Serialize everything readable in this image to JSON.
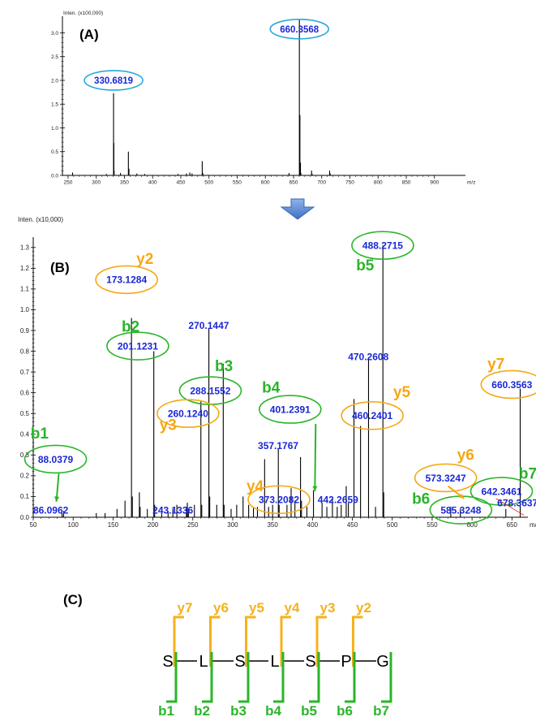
{
  "chart_data": [
    {
      "type": "bar",
      "panel": "(A)",
      "intensity_label": "Inten. (x100,000)",
      "xlabel": "m/z",
      "xlim": [
        240,
        955
      ],
      "ylim": [
        0,
        3.35
      ],
      "x_ticks": [
        250,
        300,
        350,
        400,
        450,
        500,
        550,
        600,
        650,
        700,
        750,
        800,
        850,
        900
      ],
      "y_ticks": [
        "0.0",
        "0.5",
        "1.0",
        "1.5",
        "2.0",
        "2.5",
        "3.0"
      ],
      "peaks": [
        {
          "x": 258,
          "y": 0.06
        },
        {
          "x": 318,
          "y": 0.03
        },
        {
          "x": 330.68,
          "y": 1.73
        },
        {
          "x": 331.2,
          "y": 0.68
        },
        {
          "x": 331.7,
          "y": 0.1
        },
        {
          "x": 343,
          "y": 0.05
        },
        {
          "x": 357,
          "y": 0.5
        },
        {
          "x": 358,
          "y": 0.14
        },
        {
          "x": 372,
          "y": 0.04
        },
        {
          "x": 386,
          "y": 0.03
        },
        {
          "x": 445,
          "y": 0.03
        },
        {
          "x": 460,
          "y": 0.04
        },
        {
          "x": 466,
          "y": 0.06
        },
        {
          "x": 470,
          "y": 0.04
        },
        {
          "x": 488,
          "y": 0.3
        },
        {
          "x": 489,
          "y": 0.05
        },
        {
          "x": 642,
          "y": 0.05
        },
        {
          "x": 660.36,
          "y": 3.27
        },
        {
          "x": 661.3,
          "y": 1.27
        },
        {
          "x": 662.3,
          "y": 0.27
        },
        {
          "x": 663,
          "y": 0.05
        },
        {
          "x": 682,
          "y": 0.1
        },
        {
          "x": 683,
          "y": 0.03
        },
        {
          "x": 714,
          "y": 0.1
        },
        {
          "x": 715,
          "y": 0.04
        }
      ],
      "labels": [
        {
          "text": "330.6819",
          "x": 330.68,
          "y": 2.0,
          "ring": "#29a8e0"
        },
        {
          "text": "660.3568",
          "x": 660.36,
          "y": 3.08,
          "ring": "#29a8e0"
        }
      ]
    },
    {
      "type": "bar",
      "panel": "(B)",
      "intensity_label": "Inten. (x10,000)",
      "xlabel": "m/z",
      "xlim": [
        50,
        670
      ],
      "ylim": [
        0,
        1.35
      ],
      "x_ticks": [
        50,
        100,
        150,
        200,
        250,
        300,
        350,
        400,
        450,
        500,
        550,
        600,
        650
      ],
      "y_ticks": [
        "0.0",
        "0.1",
        "0.2",
        "0.3",
        "0.4",
        "0.5",
        "0.6",
        "0.7",
        "0.8",
        "0.9",
        "1.0",
        "1.1",
        "1.2",
        "1.3"
      ],
      "peaks": [
        {
          "x": 86.0962,
          "y": 0.02
        },
        {
          "x": 88.0379,
          "y": 0.03
        },
        {
          "x": 129,
          "y": 0.02
        },
        {
          "x": 140,
          "y": 0.02
        },
        {
          "x": 155,
          "y": 0.04
        },
        {
          "x": 165,
          "y": 0.08
        },
        {
          "x": 173.1284,
          "y": 0.96
        },
        {
          "x": 174.2,
          "y": 0.1
        },
        {
          "x": 183,
          "y": 0.12
        },
        {
          "x": 184,
          "y": 0.05
        },
        {
          "x": 193,
          "y": 0.04
        },
        {
          "x": 201.1231,
          "y": 0.8
        },
        {
          "x": 202.2,
          "y": 0.06
        },
        {
          "x": 211,
          "y": 0.05
        },
        {
          "x": 219,
          "y": 0.03
        },
        {
          "x": 225,
          "y": 0.04
        },
        {
          "x": 230,
          "y": 0.06
        },
        {
          "x": 242,
          "y": 0.05
        },
        {
          "x": 243.1336,
          "y": 0.07
        },
        {
          "x": 244.5,
          "y": 0.04
        },
        {
          "x": 252,
          "y": 0.06
        },
        {
          "x": 260.124,
          "y": 0.56
        },
        {
          "x": 261.2,
          "y": 0.06
        },
        {
          "x": 270.1447,
          "y": 0.91
        },
        {
          "x": 271.2,
          "y": 0.1
        },
        {
          "x": 280,
          "y": 0.06
        },
        {
          "x": 288.1552,
          "y": 0.74
        },
        {
          "x": 289.2,
          "y": 0.06
        },
        {
          "x": 298,
          "y": 0.04
        },
        {
          "x": 305,
          "y": 0.06
        },
        {
          "x": 313,
          "y": 0.1
        },
        {
          "x": 320,
          "y": 0.06
        },
        {
          "x": 326,
          "y": 0.05
        },
        {
          "x": 331,
          "y": 0.05
        },
        {
          "x": 340,
          "y": 0.28
        },
        {
          "x": 345,
          "y": 0.05
        },
        {
          "x": 350,
          "y": 0.06
        },
        {
          "x": 357.1767,
          "y": 0.33
        },
        {
          "x": 358.2,
          "y": 0.06
        },
        {
          "x": 368,
          "y": 0.06
        },
        {
          "x": 373.2082,
          "y": 0.14
        },
        {
          "x": 378,
          "y": 0.08
        },
        {
          "x": 385,
          "y": 0.29
        },
        {
          "x": 386.2,
          "y": 0.08
        },
        {
          "x": 393,
          "y": 0.05
        },
        {
          "x": 401.2391,
          "y": 0.13
        },
        {
          "x": 412,
          "y": 0.07
        },
        {
          "x": 418,
          "y": 0.05
        },
        {
          "x": 425,
          "y": 0.09
        },
        {
          "x": 431,
          "y": 0.05
        },
        {
          "x": 436,
          "y": 0.06
        },
        {
          "x": 442.2659,
          "y": 0.15
        },
        {
          "x": 445,
          "y": 0.07
        },
        {
          "x": 452,
          "y": 0.57
        },
        {
          "x": 460.2401,
          "y": 0.44
        },
        {
          "x": 470.2608,
          "y": 0.77
        },
        {
          "x": 479,
          "y": 0.05
        },
        {
          "x": 488.2715,
          "y": 1.31
        },
        {
          "x": 489.3,
          "y": 0.12
        },
        {
          "x": 573.3247,
          "y": 0.05
        },
        {
          "x": 585.3248,
          "y": 0.04
        },
        {
          "x": 642.3461,
          "y": 0.04
        },
        {
          "x": 660.3563,
          "y": 0.62
        }
      ],
      "labels": [
        {
          "text": "86.0962",
          "x": 72,
          "y": 0.035,
          "ring": ""
        },
        {
          "text": "88.0379",
          "x": 78,
          "y": 0.28,
          "ring": "#2ab52a",
          "ion": "b1",
          "ion_color": "#2ab52a",
          "ion_x": 58,
          "ion_y": 0.38
        },
        {
          "text": "173.1284",
          "x": 167,
          "y": 1.145,
          "ring": "#f5a814",
          "ion": "y2",
          "ion_color": "#f5a814",
          "ion_x": 190,
          "ion_y": 1.22
        },
        {
          "text": "201.1231",
          "x": 181,
          "y": 0.825,
          "ring": "#2ab52a",
          "ion": "b2",
          "ion_color": "#2ab52a",
          "ion_x": 172,
          "ion_y": 0.895
        },
        {
          "text": "270.1447",
          "x": 270,
          "y": 0.925,
          "ring": ""
        },
        {
          "text": "288.1552",
          "x": 272,
          "y": 0.61,
          "ring": "#2ab52a",
          "ion": "b3",
          "ion_color": "#2ab52a",
          "ion_x": 289,
          "ion_y": 0.705
        },
        {
          "text": "260.1240",
          "x": 244,
          "y": 0.5,
          "ring": "#f5a814",
          "ion": "y3",
          "ion_color": "#f5a814",
          "ion_x": 219,
          "ion_y": 0.42
        },
        {
          "text": "401.2391",
          "x": 372,
          "y": 0.52,
          "ring": "#2ab52a",
          "ion": "b4",
          "ion_color": "#2ab52a",
          "ion_x": 348,
          "ion_y": 0.6
        },
        {
          "text": "460.2401",
          "x": 475,
          "y": 0.49,
          "ring": "#f5a814",
          "ion": "y5",
          "ion_color": "#f5a814",
          "ion_x": 512,
          "ion_y": 0.58
        },
        {
          "text": "470.2608",
          "x": 470,
          "y": 0.775,
          "ring": ""
        },
        {
          "text": "488.2715",
          "x": 488,
          "y": 1.31,
          "ring": "#2ab52a",
          "ion": "b5",
          "ion_color": "#2ab52a",
          "ion_x": 466,
          "ion_y": 1.19
        },
        {
          "text": "357.1767",
          "x": 357,
          "y": 0.345,
          "ring": ""
        },
        {
          "text": "373.2082",
          "x": 358,
          "y": 0.085,
          "ring": "#f5a814",
          "ion": "y4",
          "ion_color": "#f5a814",
          "ion_x": 328,
          "ion_y": 0.125
        },
        {
          "text": "442.2659",
          "x": 432,
          "y": 0.085,
          "ring": ""
        },
        {
          "text": "243.1336",
          "x": 225,
          "y": 0.035,
          "ring": ""
        },
        {
          "text": "573.3247",
          "x": 567,
          "y": 0.19,
          "ring": "#f5a814",
          "ion": "y6",
          "ion_color": "#f5a814",
          "ion_x": 592,
          "ion_y": 0.275
        },
        {
          "text": "585.3248",
          "x": 586,
          "y": 0.035,
          "ring": "#2ab52a",
          "ion": "b6",
          "ion_color": "#2ab52a",
          "ion_x": 536,
          "ion_y": 0.065
        },
        {
          "text": "642.3461",
          "x": 637,
          "y": 0.125,
          "ring": "#2ab52a",
          "ion": "b7",
          "ion_color": "#2ab52a",
          "ion_x": 670,
          "ion_y": 0.185
        },
        {
          "text": "678.3637",
          "x": 657,
          "y": 0.07,
          "ring": ""
        },
        {
          "text": "660.3563",
          "x": 650,
          "y": 0.64,
          "ring": "#f5a814",
          "ion": "y7",
          "ion_color": "#f5a814",
          "ion_x": 630,
          "ion_y": 0.715
        }
      ]
    }
  ],
  "peptide": {
    "panel": "(C)",
    "residues": [
      "S",
      "L",
      "S",
      "L",
      "S",
      "P",
      "G"
    ],
    "y_ions": [
      "y7",
      "y6",
      "y5",
      "y4",
      "y3",
      "y2"
    ],
    "b_ions": [
      "b1",
      "b2",
      "b3",
      "b4",
      "b5",
      "b6",
      "b7"
    ],
    "y_color": "#f5b21c",
    "b_color": "#2ab52a"
  },
  "colors": {
    "arrow": "#4a7fd0",
    "peak": "#000000",
    "label": "#1a27d6"
  },
  "icons": {
    "down-arrow": "down-arrow-icon"
  }
}
